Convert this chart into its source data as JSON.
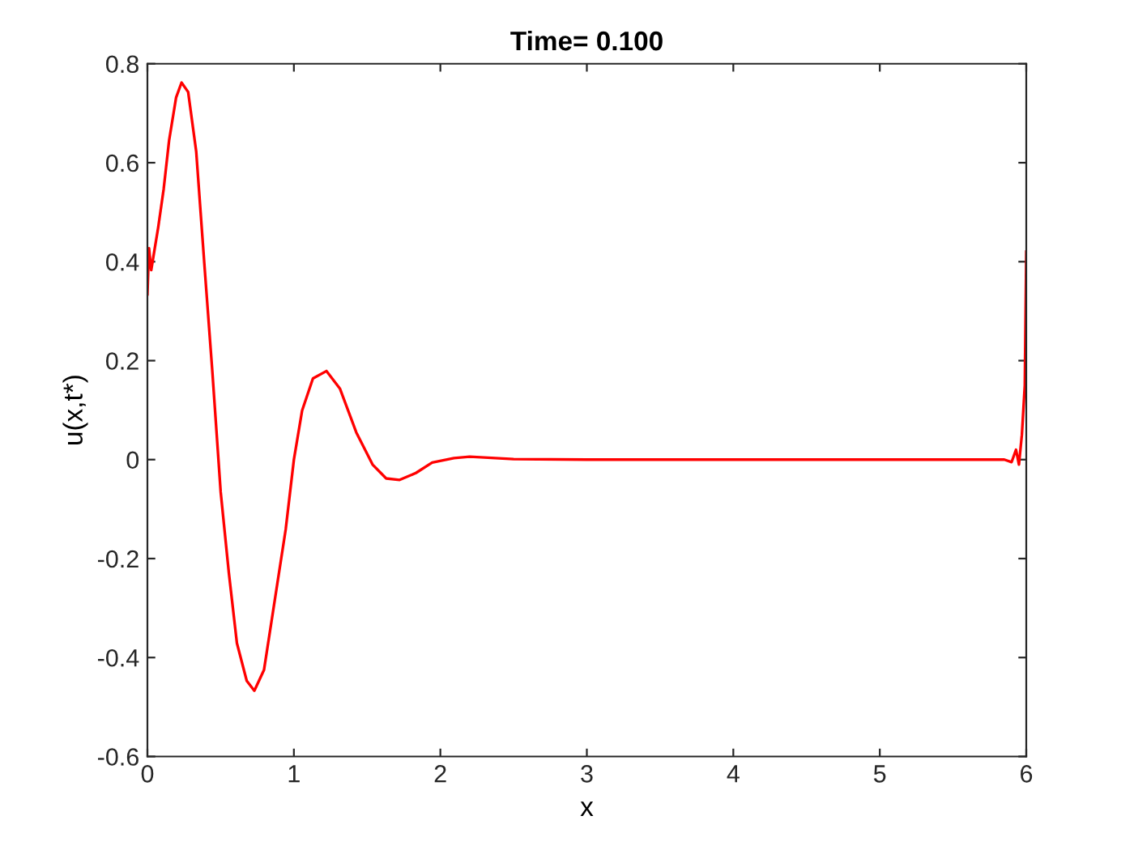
{
  "chart_data": {
    "type": "line",
    "title": "Time= 0.100",
    "xlabel": "x",
    "ylabel": "u(x,t*)",
    "series": [
      {
        "color": "#ff0000",
        "x": [
          0,
          0.011,
          0.026,
          0.044,
          0.074,
          0.111,
          0.148,
          0.196,
          0.233,
          0.278,
          0.333,
          0.389,
          0.444,
          0.5,
          0.556,
          0.611,
          0.678,
          0.73,
          0.796,
          0.87,
          0.944,
          1.0,
          1.056,
          1.13,
          1.222,
          1.315,
          1.426,
          1.537,
          1.63,
          1.722,
          1.833,
          1.944,
          2.093,
          2.2,
          2.5,
          3,
          4,
          5,
          5.85,
          5.9,
          5.93,
          5.95,
          5.97,
          5.98,
          5.99,
          6.0
        ],
        "values": [
          0.334,
          0.427,
          0.383,
          0.416,
          0.47,
          0.547,
          0.645,
          0.732,
          0.762,
          0.743,
          0.623,
          0.394,
          0.175,
          -0.065,
          -0.229,
          -0.371,
          -0.447,
          -0.467,
          -0.425,
          -0.283,
          -0.141,
          0.0,
          0.099,
          0.164,
          0.179,
          0.143,
          0.055,
          -0.01,
          -0.038,
          -0.041,
          -0.027,
          -0.006,
          0.003,
          0.006,
          0.001,
          0,
          0,
          0,
          0,
          -0.005,
          0.02,
          -0.01,
          0.05,
          0.1,
          0.15,
          0.42
        ]
      }
    ],
    "xlim": [
      0,
      6
    ],
    "ylim": [
      -0.6,
      0.8
    ],
    "xticks": [
      0,
      1,
      2,
      3,
      4,
      5,
      6
    ],
    "yticks": [
      -0.6,
      -0.4,
      -0.2,
      0,
      0.2,
      0.4,
      0.6,
      0.8
    ],
    "grid": false,
    "legend": false,
    "line_style": "solid"
  }
}
